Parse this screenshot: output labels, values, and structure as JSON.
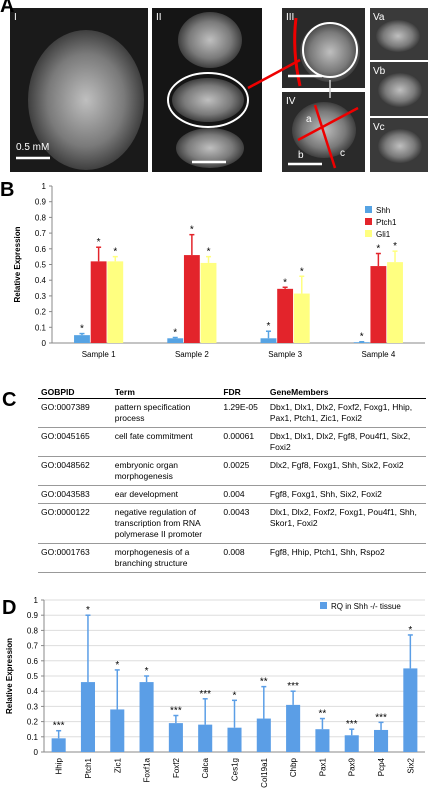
{
  "figure": {
    "panel_labels": [
      "A",
      "B",
      "C",
      "D"
    ],
    "image_labels": [
      "I",
      "II",
      "III",
      "IV",
      "Va",
      "Vb",
      "Vc"
    ],
    "scale_label": "0.5 mM",
    "region_labels": [
      "a",
      "b",
      "c"
    ]
  },
  "chart_data": [
    {
      "type": "bar",
      "y_label": "Relative Expression",
      "categories": [
        "Sample 1",
        "Sample 2",
        "Sample 3",
        "Sample 4"
      ],
      "series": [
        {
          "name": "Shh",
          "color": "#56a3e3",
          "values": [
            0.05,
            0.03,
            0.03,
            0.005
          ],
          "errors": [
            0.01,
            0.005,
            0.045,
            0.003
          ],
          "significance": [
            "*",
            "*",
            "*",
            "*"
          ]
        },
        {
          "name": "Ptch1",
          "color": "#e3242b",
          "values": [
            0.52,
            0.56,
            0.345,
            0.49
          ],
          "errors": [
            0.09,
            0.13,
            0.01,
            0.08
          ],
          "significance": [
            "*",
            "*",
            "*",
            "*"
          ]
        },
        {
          "name": "Gli1",
          "color": "#ffff80",
          "values": [
            0.52,
            0.51,
            0.315,
            0.515
          ],
          "errors": [
            0.03,
            0.04,
            0.11,
            0.07
          ],
          "significance": [
            "*",
            "*",
            "*",
            "*"
          ]
        }
      ],
      "ylim": [
        0,
        1
      ],
      "yticks": [
        0,
        0.1,
        0.2,
        0.3,
        0.4,
        0.5,
        0.6,
        0.7,
        0.8,
        0.9,
        1
      ],
      "grid": false,
      "legend": "top-right"
    },
    {
      "type": "bar",
      "y_label": "Relative Expression",
      "categories": [
        "Hhip",
        "Ptch1",
        "Zic1",
        "Foxf1a",
        "Foxf2",
        "Calca",
        "Ces1g",
        "Col19a1",
        "Chbp",
        "Pax1",
        "Pax9",
        "Pcp4",
        "Six2"
      ],
      "series": [
        {
          "name": "RQ in Shh -/- tissue",
          "color": "#5b9ee6",
          "values": [
            0.09,
            0.46,
            0.28,
            0.46,
            0.19,
            0.18,
            0.16,
            0.22,
            0.31,
            0.15,
            0.11,
            0.145,
            0.55
          ],
          "errors": [
            0.05,
            0.44,
            0.26,
            0.04,
            0.05,
            0.17,
            0.18,
            0.21,
            0.09,
            0.07,
            0.04,
            0.05,
            0.22
          ],
          "significance": [
            "***",
            "*",
            "*",
            "*",
            "***",
            "***",
            "*",
            "**",
            "***",
            "**",
            "***",
            "***",
            "*"
          ]
        }
      ],
      "ylim": [
        0,
        1
      ],
      "yticks": [
        0,
        0.1,
        0.2,
        0.3,
        0.4,
        0.5,
        0.6,
        0.7,
        0.8,
        0.9,
        1
      ],
      "grid": true,
      "legend": "top-right"
    }
  ],
  "table": {
    "header": [
      "GOBPID",
      "Term",
      "FDR",
      "GeneMembers"
    ],
    "rows": [
      [
        "GO:0007389",
        "pattern specification process",
        "1.29E-05",
        "Dbx1, Dlx1, Dlx2, Foxf2, Foxg1, Hhip, Pax1, Ptch1, Zic1, Foxi2"
      ],
      [
        "GO:0045165",
        "cell fate commitment",
        "0.00061",
        "Dbx1, Dlx1, Dlx2, Fgf8, Pou4f1, Six2, Foxi2"
      ],
      [
        "GO:0048562",
        "embryonic organ morphogenesis",
        "0.0025",
        "Dlx2, Fgf8, Foxg1, Shh, Six2, Foxi2"
      ],
      [
        "GO:0043583",
        "ear development",
        "0.004",
        "Fgf8, Foxg1, Shh, Six2, Foxi2"
      ],
      [
        "GO:0000122",
        "negative regulation of transcription from RNA polymerase II promoter",
        "0.0043",
        "Dlx1, Dlx2, Foxf2, Foxg1, Pou4f1, Shh, Skor1, Foxi2"
      ],
      [
        "GO:0001763",
        "morphogenesis of a branching structure",
        "0.008",
        "Fgf8, Hhip, Ptch1, Shh, Rspo2"
      ]
    ]
  }
}
